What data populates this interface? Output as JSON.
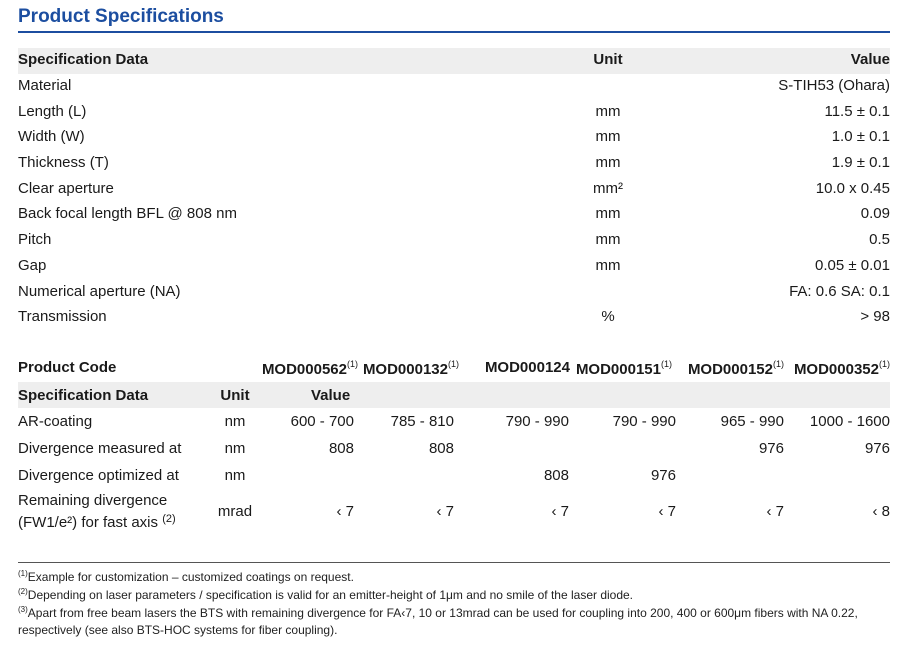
{
  "title": "Product Specifications",
  "table1": {
    "headers": {
      "name": "Specification Data",
      "unit": "Unit",
      "value": "Value"
    },
    "rows": [
      {
        "name": "Material",
        "unit": "",
        "value": "S-TIH53 (Ohara)"
      },
      {
        "name": "Length (L)",
        "unit": "mm",
        "value": "11.5 ± 0.1"
      },
      {
        "name": "Width (W)",
        "unit": "mm",
        "value": "1.0 ± 0.1"
      },
      {
        "name": "Thickness (T)",
        "unit": "mm",
        "value": "1.9 ± 0.1"
      },
      {
        "name": "Clear aperture",
        "unit": "mm²",
        "value": "10.0 x 0.45"
      },
      {
        "name": "Back focal length BFL @ 808 nm",
        "unit": "mm",
        "value": "0.09"
      },
      {
        "name": "Pitch",
        "unit": "mm",
        "value": "0.5"
      },
      {
        "name": "Gap",
        "unit": "mm",
        "value": "0.05 ± 0.01"
      },
      {
        "name": "Numerical aperture (NA)",
        "unit": "",
        "value": "FA: 0.6  SA: 0.1"
      },
      {
        "name": "Transmission",
        "unit": "%",
        "value": "> 98"
      }
    ]
  },
  "table2": {
    "code_label": "Product Code",
    "codes": [
      "MOD000562",
      "MOD000132",
      "MOD000124",
      "MOD000151",
      "MOD000152",
      "MOD000352"
    ],
    "code_notes": [
      "(1)",
      "(1)",
      "",
      "(1)",
      "(1)",
      "(1)"
    ],
    "headers": {
      "name": "Specification Data",
      "unit": "Unit",
      "value": "Value"
    },
    "rows": [
      {
        "name": "AR-coating",
        "unit": "nm",
        "values": [
          "600 - 700",
          "785 - 810",
          "790 - 990",
          "790 - 990",
          "965 - 990",
          "1000 - 1600"
        ]
      },
      {
        "name": "Divergence measured at",
        "unit": "nm",
        "values": [
          "808",
          "808",
          "",
          "",
          "976",
          "976"
        ]
      },
      {
        "name": "Divergence optimized at",
        "unit": "nm",
        "values": [
          "",
          "",
          "808",
          "976",
          "",
          ""
        ]
      },
      {
        "name_line1": "Remaining divergence",
        "name_line2": "(FW1/e²) for fast axis",
        "name_note": "(2)",
        "unit": "mrad",
        "values": [
          "‹ 7",
          "‹ 7",
          "‹ 7",
          "‹ 7",
          "‹ 7",
          "‹ 8"
        ]
      }
    ]
  },
  "footnotes": [
    {
      "mark": "(1)",
      "text": "Example for customization – customized coatings on request."
    },
    {
      "mark": "(2)",
      "text": "Depending on laser parameters / specification is valid for an emitter-height of 1μm and no smile of the laser diode."
    },
    {
      "mark": "(3)",
      "text": "Apart from free beam lasers the BTS with remaining divergence for FA‹7, 10 or 13mrad can be used for coupling into 200, 400 or 600μm fibers with NA 0.22, respectively (see also BTS-HOC systems for fiber coupling)."
    }
  ]
}
